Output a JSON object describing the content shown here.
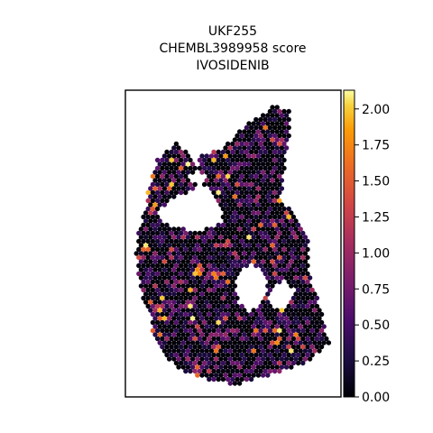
{
  "chart_data": {
    "type": "scatter",
    "title_lines": [
      "UKF255",
      "CHEMBL3989958 score",
      "IVOSIDENIB"
    ],
    "description_encoding": "hexagonal spatial spots colored by score",
    "colormap": "inferno",
    "color_range": [
      0.0,
      2.13
    ],
    "colorbar_ticks": [
      "0.00",
      "0.25",
      "0.50",
      "0.75",
      "1.00",
      "1.25",
      "1.50",
      "1.75",
      "2.00"
    ],
    "colorbar_tick_values": [
      0.0,
      0.25,
      0.5,
      0.75,
      1.0,
      1.25,
      1.5,
      1.75,
      2.0
    ],
    "score_summary": {
      "typical": 0.1,
      "max": 2.13
    },
    "axes_visible": false,
    "grid": false
  }
}
